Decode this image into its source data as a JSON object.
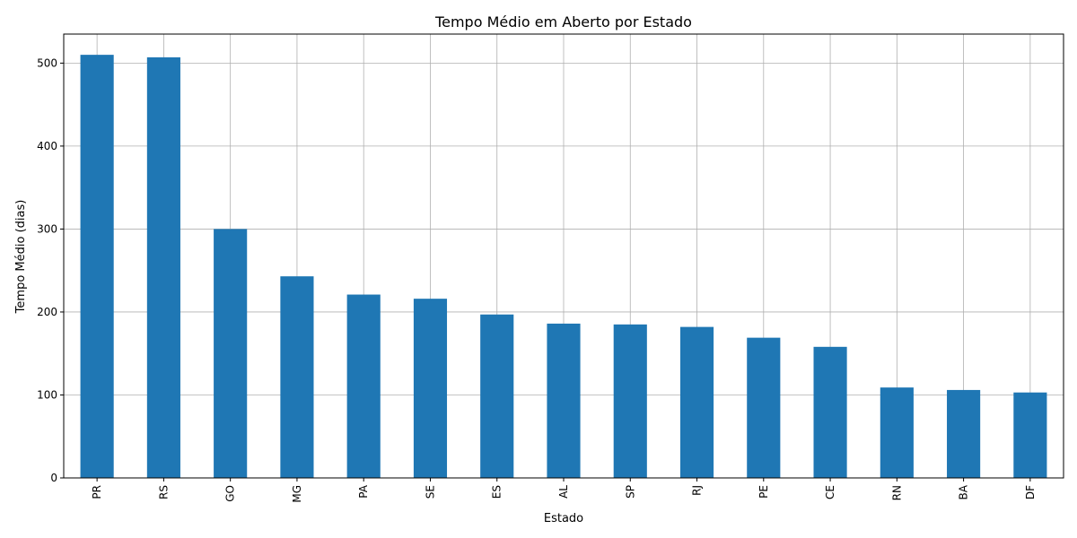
{
  "chart_data": {
    "type": "bar",
    "title": "Tempo Médio em Aberto por Estado",
    "xlabel": "Estado",
    "ylabel": "Tempo Médio (dias)",
    "categories": [
      "PR",
      "RS",
      "GO",
      "MG",
      "PA",
      "SE",
      "ES",
      "AL",
      "SP",
      "RJ",
      "PE",
      "CE",
      "RN",
      "BA",
      "DF"
    ],
    "values": [
      510,
      507,
      300,
      243,
      221,
      216,
      197,
      186,
      185,
      182,
      169,
      158,
      109,
      106,
      103
    ],
    "ylim": [
      0,
      535
    ],
    "yticks": [
      0,
      100,
      200,
      300,
      400,
      500
    ],
    "grid": true,
    "bar_color": "#1f77b4"
  }
}
